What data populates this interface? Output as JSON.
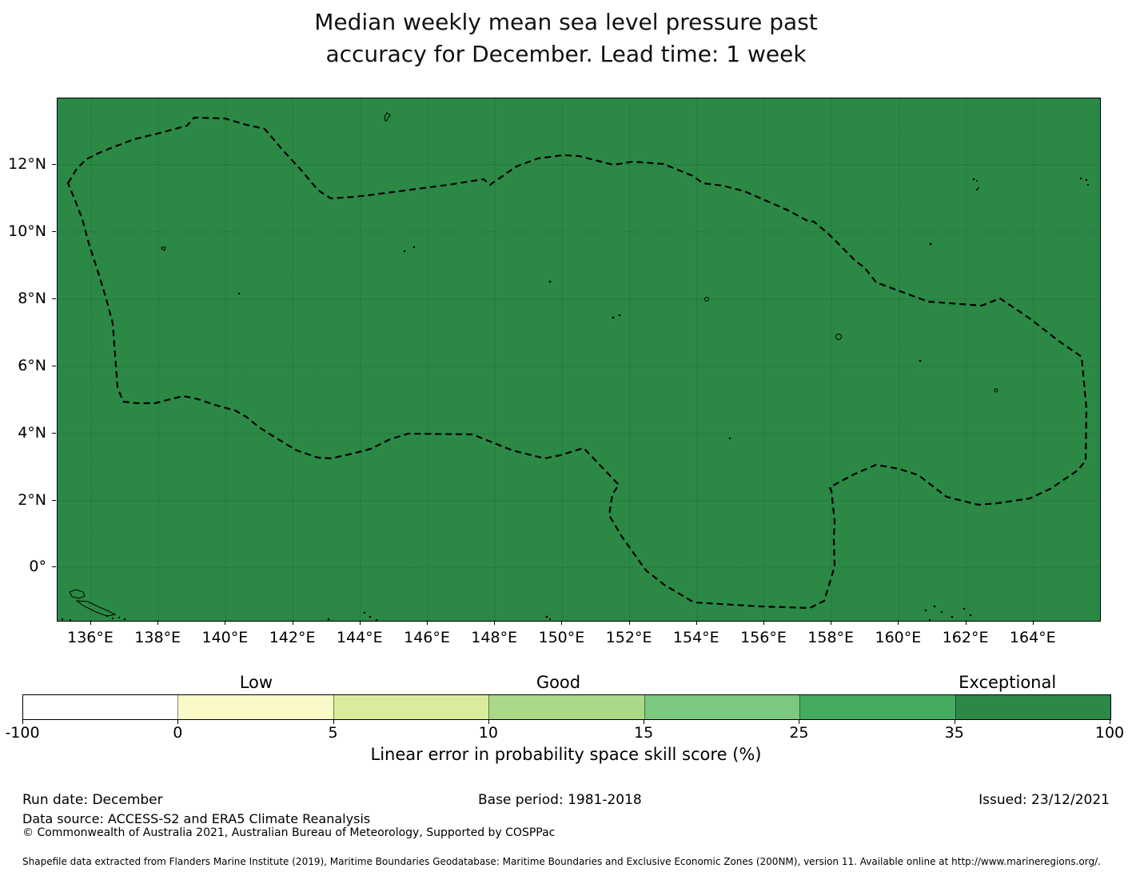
{
  "title": {
    "line1": "Median weekly mean sea level pressure past",
    "line2": "accuracy for December. Lead time: 1 week"
  },
  "map": {
    "fill_color": "#2b8945",
    "boundary_style": "black dashed EEZ outline",
    "x_ticks": [
      "136°E",
      "138°E",
      "140°E",
      "142°E",
      "144°E",
      "146°E",
      "148°E",
      "150°E",
      "152°E",
      "154°E",
      "156°E",
      "158°E",
      "160°E",
      "162°E",
      "164°E"
    ],
    "y_ticks": [
      "12°N",
      "10°N",
      "8°N",
      "6°N",
      "4°N",
      "2°N",
      "0°"
    ]
  },
  "colorbar": {
    "category_labels": [
      "Low",
      "Good",
      "Exceptional"
    ],
    "tick_labels": [
      "-100",
      "0",
      "5",
      "10",
      "15",
      "25",
      "35",
      "100"
    ],
    "segment_colors": [
      "#ffffff",
      "#fafac8",
      "#d9ec9b",
      "#abd989",
      "#7cc87e",
      "#46ab5f",
      "#2b8945"
    ],
    "axis_label": "Linear error in probability space skill score (%)"
  },
  "footer": {
    "run_date": "Run date: December",
    "base_period": "Base period: 1981-2018",
    "issued": "Issued: 23/12/2021",
    "data_source": "Data source: ACCESS-S2 and ERA5 Climate Reanalysis",
    "copyright": "© Commonwealth of Australia 2021, Australian Bureau of Meteorology, Supported by COSPPac",
    "shapefile_note": "Shapefile data extracted from Flanders Marine Institute (2019), Maritime Boundaries Geodatabase: Maritime Boundaries and Exclusive Economic Zones (200NM), version 11. Available online at http://www.marineregions.org/."
  },
  "chart_data": {
    "type": "heatmap",
    "subtype": "geographic-choropleth-skill-map",
    "title": "Median weekly mean sea level pressure past accuracy for December. Lead time: 1 week",
    "x_axis": {
      "tick_labels": [
        "136°E",
        "138°E",
        "140°E",
        "142°E",
        "144°E",
        "146°E",
        "148°E",
        "150°E",
        "152°E",
        "154°E",
        "156°E",
        "158°E",
        "160°E",
        "162°E",
        "164°E"
      ],
      "approx_range_deg_east": [
        135,
        166
      ]
    },
    "y_axis": {
      "tick_labels": [
        "12°N",
        "10°N",
        "8°N",
        "6°N",
        "4°N",
        "2°N",
        "0°"
      ],
      "approx_range_deg_north": [
        -1.6,
        14
      ]
    },
    "grid": true,
    "colorbar": {
      "label": "Linear error in probability space skill score (%)",
      "boundaries": [
        -100,
        0,
        5,
        10,
        15,
        25,
        35,
        100
      ],
      "segment_colors": [
        "#ffffff",
        "#fafac8",
        "#d9ec9b",
        "#abd989",
        "#7cc87e",
        "#46ab5f",
        "#2b8945"
      ],
      "categories": [
        {
          "label": "Low",
          "centered_over_bin": "0–5"
        },
        {
          "label": "Good",
          "centered_over_bin": "10–15"
        },
        {
          "label": "Exceptional",
          "centered_over_bin": "35–100"
        }
      ],
      "position": "horizontal, below map"
    },
    "values": "Entire mapped ocean region rendered in the uniform dark-green 35–100 (Exceptional) skill bin",
    "overlays": [
      "dashed EEZ boundary polygon",
      "small island coastline outlines"
    ]
  }
}
